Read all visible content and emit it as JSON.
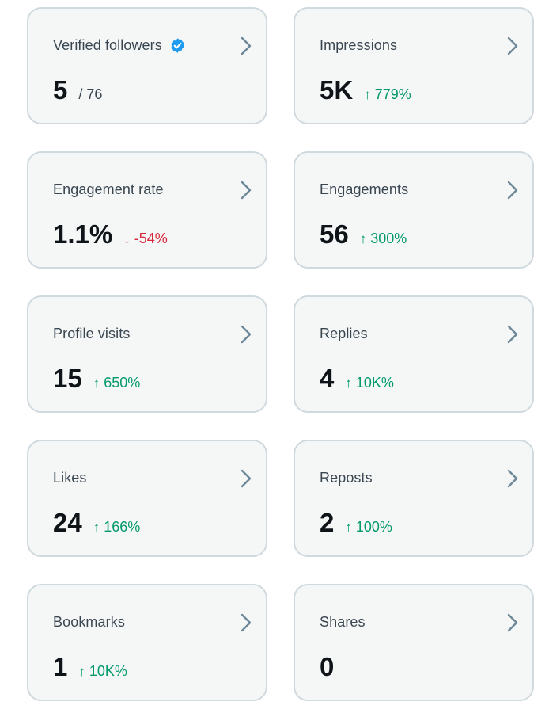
{
  "colors": {
    "card_bg": "#f5f7f7",
    "card_border": "#cfd9de",
    "up": "#00996b",
    "down": "#d6283b",
    "verified": "#1d9bf0"
  },
  "cards": [
    {
      "title": "Verified followers",
      "value": "5",
      "sub": "/ 76",
      "verified": true
    },
    {
      "title": "Impressions",
      "value": "5K",
      "delta": "779%",
      "direction": "up"
    },
    {
      "title": "Engagement rate",
      "value": "1.1%",
      "delta": "-54%",
      "direction": "down"
    },
    {
      "title": "Engagements",
      "value": "56",
      "delta": "300%",
      "direction": "up"
    },
    {
      "title": "Profile visits",
      "value": "15",
      "delta": "650%",
      "direction": "up"
    },
    {
      "title": "Replies",
      "value": "4",
      "delta": "10K%",
      "direction": "up"
    },
    {
      "title": "Likes",
      "value": "24",
      "delta": "166%",
      "direction": "up"
    },
    {
      "title": "Reposts",
      "value": "2",
      "delta": "100%",
      "direction": "up"
    },
    {
      "title": "Bookmarks",
      "value": "1",
      "delta": "10K%",
      "direction": "up"
    },
    {
      "title": "Shares",
      "value": "0"
    }
  ],
  "icons": {
    "chevron": "chevron-right-icon",
    "verified": "verified-badge-icon",
    "up": "arrow-up-icon",
    "down": "arrow-down-icon"
  },
  "arrows": {
    "up": "↑",
    "down": "↓"
  }
}
